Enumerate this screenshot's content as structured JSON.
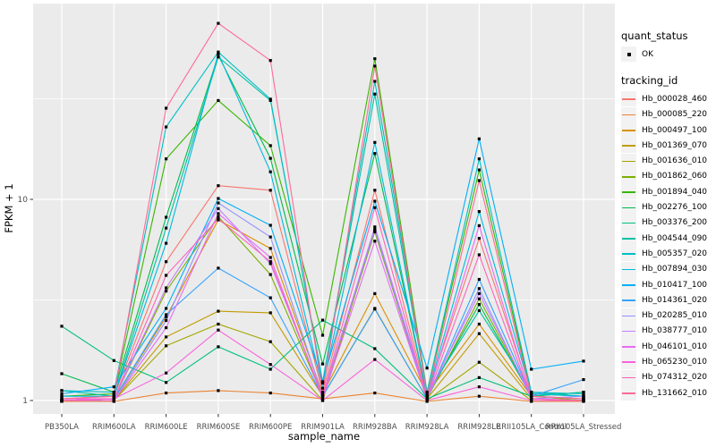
{
  "chart_data": {
    "type": "line",
    "title": "",
    "xlabel": "sample_name",
    "ylabel": "FPKM + 1",
    "y_scale": "log10",
    "grid": "on",
    "legend_position": "right",
    "y_axis": {
      "major_ticks": [
        {
          "value": 1,
          "label": "1"
        },
        {
          "value": 10,
          "label": "10"
        }
      ],
      "minor_ticks": [
        3.162,
        31.623
      ],
      "range": [
        0.86,
        94
      ]
    },
    "colors": {
      "panel_bg": "#EBEBEB",
      "grid": "#FFFFFF",
      "axis_text": "#4D4D4D",
      "axis_title": "#000000",
      "tick_mark": "#333333",
      "point": "#000000",
      "legend_key_bg": "#F2F2F2"
    },
    "categories": [
      "PB350LA",
      "RRIM600LA",
      "RRIM600LE",
      "RRIM600SE",
      "RRIM600PE",
      "RRIM901LA",
      "RRIM928BA",
      "RRIM928LA",
      "RRIM928LE",
      "RRII105LA_Control",
      "RRII105LA_Stressed"
    ],
    "series": [
      {
        "name": "Hb_000028_460",
        "color": "#F8766D",
        "values": [
          1.02,
          1.05,
          4.9,
          11.7,
          11.1,
          1.1,
          11.1,
          1.05,
          6.4,
          1.05,
          1.02
        ]
      },
      {
        "name": "Hb_000085_220",
        "color": "#EA8331",
        "values": [
          0.99,
          0.99,
          1.09,
          1.12,
          1.09,
          1.02,
          1.09,
          0.99,
          1.05,
          0.99,
          0.99
        ]
      },
      {
        "name": "Hb_000497_100",
        "color": "#D89000",
        "values": [
          1.0,
          1.02,
          2.6,
          7.9,
          5.7,
          1.08,
          3.4,
          1.08,
          2.4,
          1.05,
          1.02
        ]
      },
      {
        "name": "Hb_001369_070",
        "color": "#C09B00",
        "values": [
          1.0,
          1.0,
          2.07,
          2.78,
          2.73,
          1.05,
          2.87,
          1.02,
          2.15,
          1.02,
          1.0
        ]
      },
      {
        "name": "Hb_001636_010",
        "color": "#A3A500",
        "values": [
          1.0,
          1.0,
          1.87,
          2.4,
          1.96,
          1.0,
          7.0,
          1.0,
          1.55,
          1.0,
          1.0
        ]
      },
      {
        "name": "Hb_001862_060",
        "color": "#7CAE00",
        "values": [
          1.0,
          1.02,
          3.5,
          8.2,
          4.23,
          1.05,
          6.9,
          1.02,
          3.2,
          1.05,
          1.0
        ]
      },
      {
        "name": "Hb_001894_040",
        "color": "#39B600",
        "values": [
          1.05,
          1.08,
          15.9,
          31.0,
          18.5,
          2.11,
          50.0,
          1.1,
          14.0,
          1.08,
          1.05
        ]
      },
      {
        "name": "Hb_002276_100",
        "color": "#00BB4E",
        "values": [
          1.36,
          1.1,
          8.15,
          52.0,
          16.0,
          1.52,
          16.9,
          1.05,
          3.0,
          1.05,
          1.1
        ]
      },
      {
        "name": "Hb_003376_200",
        "color": "#00BF7D",
        "values": [
          2.34,
          1.58,
          1.23,
          1.85,
          1.43,
          2.51,
          1.81,
          1.02,
          1.3,
          1.05,
          1.1
        ]
      },
      {
        "name": "Hb_004544_090",
        "color": "#00C1A3",
        "values": [
          1.12,
          1.05,
          7.2,
          51.0,
          31.0,
          1.24,
          33.4,
          1.08,
          2.8,
          1.1,
          1.05
        ]
      },
      {
        "name": "Hb_005357_020",
        "color": "#00BFC4",
        "values": [
          1.12,
          1.1,
          22.9,
          54.0,
          31.5,
          1.22,
          38.6,
          1.1,
          15.9,
          1.1,
          1.08
        ]
      },
      {
        "name": "Hb_007894_030",
        "color": "#00BAE0",
        "values": [
          1.05,
          1.05,
          6.05,
          53.0,
          13.7,
          1.15,
          19.2,
          1.05,
          8.7,
          1.08,
          1.05
        ]
      },
      {
        "name": "Hb_010417_100",
        "color": "#00B0F6",
        "values": [
          1.08,
          1.17,
          2.87,
          10.1,
          7.43,
          1.24,
          9.8,
          1.45,
          20.0,
          1.43,
          1.57
        ]
      },
      {
        "name": "Hb_014361_020",
        "color": "#35A2FF",
        "values": [
          1.0,
          1.02,
          2.67,
          4.55,
          3.24,
          1.05,
          2.85,
          1.02,
          4.0,
          1.05,
          1.27
        ]
      },
      {
        "name": "Hb_020285_010",
        "color": "#9590FF",
        "values": [
          1.0,
          1.0,
          2.5,
          9.6,
          6.5,
          1.05,
          7.1,
          1.02,
          3.6,
          1.02,
          1.05
        ]
      },
      {
        "name": "Hb_038777_010",
        "color": "#C77CFF",
        "values": [
          1.0,
          1.02,
          3.63,
          9.0,
          4.79,
          1.05,
          7.3,
          1.05,
          3.4,
          1.05,
          1.02
        ]
      },
      {
        "name": "Hb_046101_010",
        "color": "#E76BF3",
        "values": [
          1.0,
          1.0,
          2.3,
          8.5,
          5.14,
          1.02,
          6.2,
          1.02,
          7.4,
          1.02,
          1.0
        ]
      },
      {
        "name": "Hb_065230_010",
        "color": "#FA62DB",
        "values": [
          1.02,
          1.02,
          1.37,
          2.24,
          1.51,
          1.0,
          1.6,
          1.0,
          1.17,
          1.0,
          1.0
        ]
      },
      {
        "name": "Hb_074312_020",
        "color": "#FF62BC",
        "values": [
          1.0,
          1.02,
          4.19,
          8.0,
          4.9,
          1.05,
          9.1,
          1.02,
          5.3,
          1.02,
          1.0
        ]
      },
      {
        "name": "Hb_131662_010",
        "color": "#FF6A98",
        "values": [
          1.02,
          1.05,
          28.4,
          75.0,
          49.0,
          1.1,
          46.0,
          1.05,
          12.4,
          1.05,
          1.02
        ]
      }
    ],
    "legend": {
      "quant_status": {
        "title": "quant_status",
        "items": [
          {
            "label": "OK",
            "marker": "black-point"
          }
        ]
      },
      "tracking_id": {
        "title": "tracking_id"
      }
    }
  }
}
